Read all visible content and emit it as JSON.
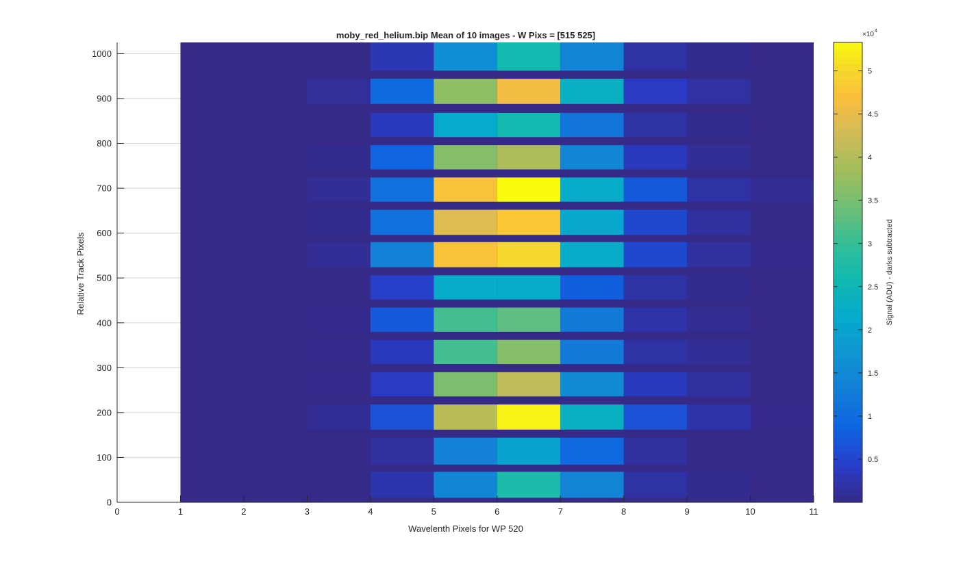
{
  "chart_data": {
    "type": "heatmap",
    "title": "moby_red_helium.bip  Mean of 10 images - W Pixs = [515  525]",
    "xlabel": "Wavelenth Pixels for WP 520",
    "ylabel": "Relative Track Pixels",
    "colorbar_label": "Signal (ADU) - darks subtracted",
    "colorbar_exponent": "×10",
    "colorbar_exponent_power": "4",
    "colormap": "parula",
    "xlim": [
      0,
      11
    ],
    "ylim": [
      0,
      1025
    ],
    "clim": [
      0,
      53300
    ],
    "x_ticks": [
      "0",
      "1",
      "2",
      "3",
      "4",
      "5",
      "6",
      "7",
      "8",
      "9",
      "10",
      "11"
    ],
    "y_ticks": [
      "0",
      "100",
      "200",
      "300",
      "400",
      "500",
      "600",
      "700",
      "800",
      "900",
      "1000"
    ],
    "colorbar_ticks": [
      "0.5",
      "1",
      "1.5",
      "2",
      "2.5",
      "3",
      "3.5",
      "4",
      "4.5",
      "5"
    ],
    "grid": "y-major",
    "columns": [
      "1-2",
      "2-3",
      "3-4",
      "4-5",
      "5-6",
      "6-7",
      "7-8",
      "8-9",
      "9-10",
      "10-11"
    ],
    "bands": [
      {
        "y_range": [
          10,
          68
        ],
        "values": [
          0,
          0,
          100,
          2500,
          14500,
          27000,
          14000,
          2000,
          500,
          0
        ]
      },
      {
        "y_range": [
          84,
          144
        ],
        "values": [
          0,
          0,
          100,
          1500,
          13500,
          20000,
          9500,
          1500,
          200,
          0
        ]
      },
      {
        "y_range": [
          162,
          218
        ],
        "values": [
          0,
          0,
          1000,
          6500,
          40500,
          52500,
          23000,
          6500,
          2200,
          300
        ]
      },
      {
        "y_range": [
          236,
          290
        ],
        "values": [
          0,
          0,
          300,
          4000,
          35500,
          41000,
          15500,
          3500,
          1500,
          0
        ]
      },
      {
        "y_range": [
          308,
          362
        ],
        "values": [
          0,
          0,
          300,
          3500,
          31000,
          36000,
          12500,
          2000,
          1000,
          0
        ]
      },
      {
        "y_range": [
          380,
          434
        ],
        "values": [
          0,
          0,
          300,
          7500,
          31000,
          33000,
          12500,
          2200,
          700,
          0
        ]
      },
      {
        "y_range": [
          452,
          506
        ],
        "values": [
          0,
          0,
          200,
          4500,
          22000,
          22000,
          8000,
          2000,
          500,
          0
        ]
      },
      {
        "y_range": [
          524,
          580
        ],
        "values": [
          0,
          0,
          1000,
          13500,
          47500,
          50000,
          22000,
          5500,
          1500,
          300
        ]
      },
      {
        "y_range": [
          596,
          652
        ],
        "values": [
          0,
          0,
          500,
          10500,
          44000,
          48000,
          21000,
          5500,
          1500,
          200
        ]
      },
      {
        "y_range": [
          670,
          724
        ],
        "values": [
          0,
          0,
          1000,
          10500,
          47500,
          53300,
          22000,
          7500,
          2000,
          800
        ]
      },
      {
        "y_range": [
          742,
          796
        ],
        "values": [
          0,
          0,
          500,
          8500,
          36000,
          39500,
          14500,
          3500,
          1000,
          0
        ]
      },
      {
        "y_range": [
          814,
          868
        ],
        "values": [
          0,
          0,
          0,
          3500,
          21500,
          26000,
          11500,
          2000,
          500,
          0
        ]
      },
      {
        "y_range": [
          888,
          944
        ],
        "values": [
          0,
          0,
          1200,
          9500,
          37000,
          46000,
          23000,
          4000,
          1800,
          0
        ]
      },
      {
        "y_range": [
          962,
          1025
        ],
        "values": [
          0,
          0,
          0,
          3000,
          16000,
          26000,
          14000,
          2000,
          500,
          0
        ]
      }
    ]
  }
}
